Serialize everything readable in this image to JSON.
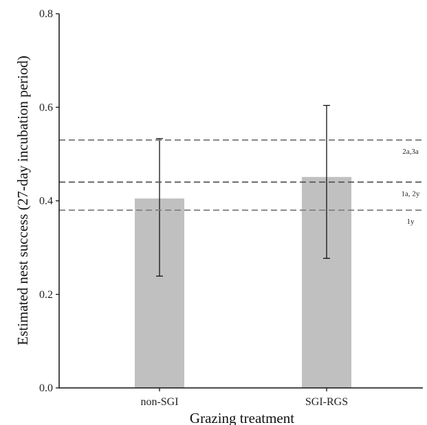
{
  "chart_data": {
    "type": "bar",
    "categories": [
      "non-SGI",
      "SGI-RGS"
    ],
    "values": [
      0.405,
      0.451
    ],
    "error_bars": [
      {
        "lower": 0.239,
        "upper": 0.533
      },
      {
        "lower": 0.277,
        "upper": 0.604
      }
    ],
    "xlabel": "Grazing treatment",
    "ylabel": "Estimated nest success (27-day incubation period)",
    "ylim": [
      0,
      0.8
    ],
    "yticks": [
      "0.0",
      "0.2",
      "0.4",
      "0.6",
      "0.8"
    ],
    "grid": false,
    "bar_color": "#c0c0c0",
    "reference_lines": [
      {
        "value": 0.53,
        "label": "2a,3a",
        "color": "#7f7f7f"
      },
      {
        "value": 0.44,
        "label": "1a, 2y",
        "color": "#555555"
      },
      {
        "value": 0.38,
        "label": "1y",
        "color": "#7f7f7f"
      }
    ]
  }
}
